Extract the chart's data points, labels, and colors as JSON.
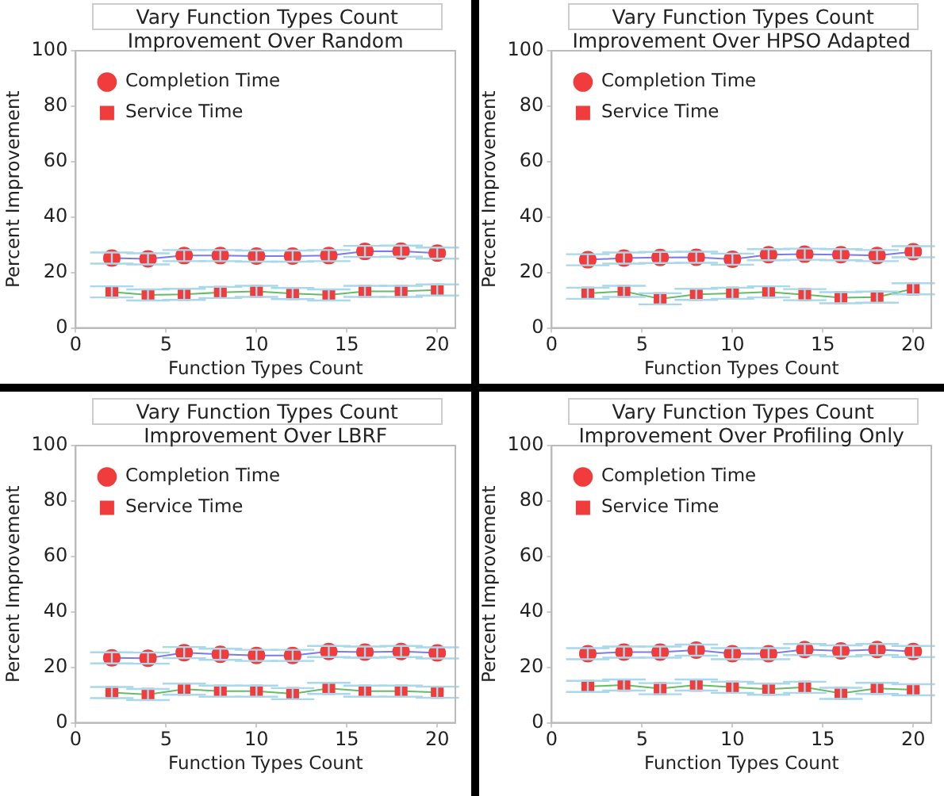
{
  "chart_data": [
    {
      "type": "line",
      "title": "Vary Function Types Count",
      "subtitle": "Improvement Over Random",
      "xlabel": "Function Types Count",
      "ylabel": "Percent Improvement",
      "x": [
        2,
        4,
        6,
        8,
        10,
        12,
        14,
        16,
        18,
        20
      ],
      "xlim": [
        0,
        21
      ],
      "xticks": [
        0,
        5,
        10,
        15,
        20
      ],
      "ylim": [
        0,
        100
      ],
      "yticks": [
        0,
        20,
        40,
        60,
        80,
        100
      ],
      "grid": false,
      "legend": "top left",
      "series": [
        {
          "name": "Completion Time",
          "color": "#7b7bf0",
          "marker": "circle",
          "values": [
            25.2,
            24.9,
            26.1,
            26.1,
            25.9,
            25.9,
            26.1,
            27.6,
            27.7,
            27.0
          ],
          "errors": [
            2,
            2,
            2,
            2,
            2,
            2,
            2,
            2,
            2,
            2
          ]
        },
        {
          "name": "Service Time",
          "color": "#66bb66",
          "marker": "square",
          "values": [
            13.0,
            11.9,
            12.1,
            12.8,
            13.2,
            12.4,
            11.9,
            13.2,
            13.2,
            13.7
          ],
          "errors": [
            2,
            2,
            2,
            2,
            2,
            2,
            2,
            2,
            2,
            2
          ]
        }
      ]
    },
    {
      "type": "line",
      "title": "Vary Function Types Count",
      "subtitle": "Improvement Over HPSO Adapted",
      "xlabel": "Function Types Count",
      "ylabel": "Percent Improvement",
      "x": [
        2,
        4,
        6,
        8,
        10,
        12,
        14,
        16,
        18,
        20
      ],
      "xlim": [
        0,
        21
      ],
      "xticks": [
        0,
        5,
        10,
        15,
        20
      ],
      "ylim": [
        0,
        100
      ],
      "yticks": [
        0,
        20,
        40,
        60,
        80,
        100
      ],
      "grid": false,
      "legend": "top left",
      "series": [
        {
          "name": "Completion Time",
          "color": "#7b7bf0",
          "marker": "circle",
          "values": [
            24.6,
            25.2,
            25.4,
            25.5,
            24.8,
            26.4,
            26.6,
            26.4,
            26.1,
            27.5
          ],
          "errors": [
            2,
            2,
            2,
            2,
            2,
            2,
            2,
            2,
            2,
            2
          ]
        },
        {
          "name": "Service Time",
          "color": "#66bb66",
          "marker": "square",
          "values": [
            12.5,
            13.2,
            10.5,
            12.1,
            12.5,
            13.0,
            12.0,
            10.9,
            11.1,
            14.1
          ],
          "errors": [
            2,
            2,
            2,
            2,
            2,
            2,
            2,
            2,
            2,
            2
          ]
        }
      ]
    },
    {
      "type": "line",
      "title": "Vary Function Types Count",
      "subtitle": "Improvement Over LBRF",
      "xlabel": "Function Types Count",
      "ylabel": "Percent Improvement",
      "x": [
        2,
        4,
        6,
        8,
        10,
        12,
        14,
        16,
        18,
        20
      ],
      "xlim": [
        0,
        21
      ],
      "xticks": [
        0,
        5,
        10,
        15,
        20
      ],
      "ylim": [
        0,
        100
      ],
      "yticks": [
        0,
        20,
        40,
        60,
        80,
        100
      ],
      "grid": false,
      "legend": "top left",
      "series": [
        {
          "name": "Completion Time",
          "color": "#7b7bf0",
          "marker": "circle",
          "values": [
            23.4,
            23.3,
            25.3,
            24.7,
            24.3,
            24.3,
            25.7,
            25.5,
            25.7,
            25.2
          ],
          "errors": [
            2,
            2,
            2,
            2,
            2,
            2,
            2,
            2,
            2,
            2
          ]
        },
        {
          "name": "Service Time",
          "color": "#66bb66",
          "marker": "square",
          "values": [
            10.9,
            10.2,
            12.1,
            11.4,
            11.4,
            10.5,
            12.4,
            11.4,
            11.4,
            11.0
          ],
          "errors": [
            2,
            2,
            2,
            2,
            2,
            2,
            2,
            2,
            2,
            2
          ]
        }
      ]
    },
    {
      "type": "line",
      "title": "Vary Function Types Count",
      "subtitle": "Improvement Over Profiling Only",
      "xlabel": "Function Types Count",
      "ylabel": "Percent Improvement",
      "x": [
        2,
        4,
        6,
        8,
        10,
        12,
        14,
        16,
        18,
        20
      ],
      "xlim": [
        0,
        21
      ],
      "xticks": [
        0,
        5,
        10,
        15,
        20
      ],
      "ylim": [
        0,
        100
      ],
      "yticks": [
        0,
        20,
        40,
        60,
        80,
        100
      ],
      "grid": false,
      "legend": "top left",
      "series": [
        {
          "name": "Completion Time",
          "color": "#7b7bf0",
          "marker": "circle",
          "values": [
            24.9,
            25.5,
            25.5,
            26.2,
            24.9,
            24.9,
            26.4,
            25.9,
            26.4,
            25.7
          ],
          "errors": [
            2,
            2,
            2,
            2,
            2,
            2,
            2,
            2,
            2,
            2
          ]
        },
        {
          "name": "Service Time",
          "color": "#66bb66",
          "marker": "square",
          "values": [
            13.1,
            13.6,
            12.3,
            13.6,
            12.8,
            12.1,
            12.8,
            10.6,
            12.4,
            11.9
          ],
          "errors": [
            2,
            2,
            2,
            2,
            2,
            2,
            2,
            2,
            2,
            2
          ]
        }
      ]
    }
  ]
}
